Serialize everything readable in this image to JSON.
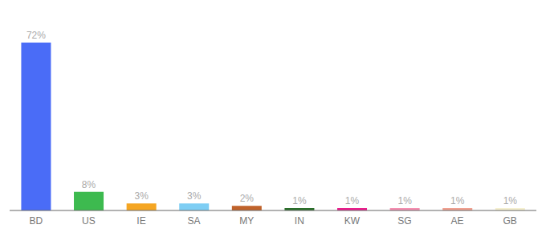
{
  "chart_data": {
    "type": "bar",
    "categories": [
      "BD",
      "US",
      "IE",
      "SA",
      "MY",
      "IN",
      "KW",
      "SG",
      "AE",
      "GB"
    ],
    "values": [
      72,
      8,
      3,
      3,
      2,
      1,
      1,
      1,
      1,
      1
    ],
    "value_labels": [
      "72%",
      "8%",
      "3%",
      "3%",
      "2%",
      "1%",
      "1%",
      "1%",
      "1%",
      "1%"
    ],
    "colors": [
      "#4a6cf7",
      "#3dba4f",
      "#f5a623",
      "#7ecef4",
      "#c0622a",
      "#2a6e2a",
      "#e91e8c",
      "#f48fb1",
      "#f0a090",
      "#f5f0d0"
    ],
    "ylim": [
      0,
      82
    ],
    "data_labels": true,
    "tick_labels": "x",
    "grid": false
  }
}
